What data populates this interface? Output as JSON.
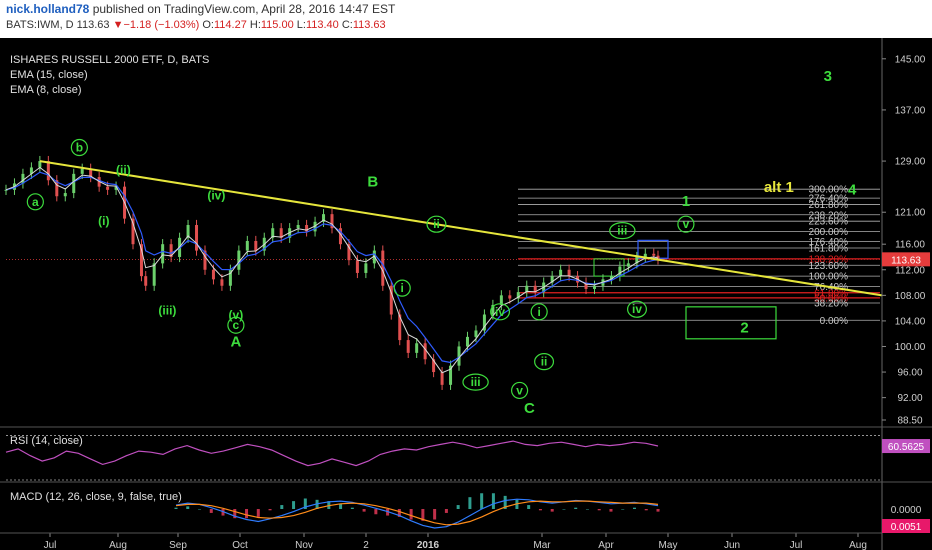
{
  "header": {
    "user": "nick.holland78",
    "published": "published on TradingView.com, April 28, 2016 14:47 EST",
    "symbol_line": "BATS:IWM, D 113.63",
    "change": "▼−1.18 (−1.03%)",
    "open_label": "O:",
    "open": "114.27",
    "high_label": "H:",
    "high": "115.00",
    "low_label": "L:",
    "low": "113.40",
    "close_label": "C:",
    "close": "113.63"
  },
  "legend": {
    "title": "ISHARES RUSSELL 2000 ETF, D, BATS",
    "ema15": "EMA (15, close)",
    "ema8": "EMA (8, close)",
    "rsi": "RSI (14, close)",
    "macd": "MACD (12, 26, close, 9, false, true)"
  },
  "colors": {
    "background": "#000000",
    "candle": "#6bd06b",
    "ema15": "#2f5cff",
    "ema8": "#d9d9d9",
    "trendline": "#e6e63c",
    "wave_label": "#3ddc3d",
    "alt_label": "#e6e63c",
    "fib_lines": "#b0b0b0",
    "fib_red": "#e02020",
    "rsi_line": "#c050c0",
    "macd_line": "#2f7cff",
    "signal_line": "#ff8c1a",
    "price_tag": "#e63c3c",
    "rsi_tag": "#c050c0",
    "macd_tag": "#e8186a"
  },
  "chart_data": [
    {
      "type": "candlestick",
      "title": "ISHARES RUSSELL 2000 ETF, D, BATS",
      "x_ticks": [
        "Jul",
        "Aug",
        "Sep",
        "Oct",
        "Nov",
        "2",
        "2016",
        "Mar",
        "Apr",
        "May",
        "Jun",
        "Jul",
        "Aug"
      ],
      "y_ticks": [
        "145.00",
        "137.00",
        "129.00",
        "121.00",
        "116.00",
        "112.00",
        "108.00",
        "104.00",
        "100.00",
        "96.00",
        "92.00",
        "88.50"
      ],
      "ylim": [
        88.5,
        147
      ],
      "last_price": "113.63",
      "price_series": {
        "x": [
          0,
          4,
          8,
          12,
          16,
          20,
          24,
          28,
          32,
          36,
          40,
          44,
          48,
          52,
          56,
          60,
          64,
          66,
          70,
          74,
          78,
          82,
          86,
          90,
          94,
          98,
          102,
          106,
          110,
          114,
          118,
          122,
          126,
          130,
          134,
          138,
          142,
          146,
          150,
          154,
          158,
          162,
          166,
          170,
          174,
          178,
          182,
          186,
          190,
          194,
          198,
          202,
          206,
          210,
          214,
          218,
          222,
          226,
          230,
          234,
          238,
          242,
          246,
          250,
          254,
          258,
          262,
          266,
          270,
          274,
          278,
          282,
          286,
          290,
          294,
          298,
          302,
          306,
          308
        ],
        "close": [
          124.5,
          125.5,
          127.0,
          128.0,
          129.0,
          126.0,
          123.5,
          124.0,
          127.0,
          127.8,
          126.5,
          125.0,
          124.5,
          125.0,
          120.0,
          116.0,
          111.0,
          109.5,
          113.0,
          116.0,
          114.0,
          117.0,
          119.0,
          115.0,
          112.0,
          110.5,
          109.5,
          112.0,
          115.0,
          116.5,
          115.0,
          117.0,
          118.5,
          117.0,
          118.5,
          119.0,
          118.0,
          119.5,
          120.7,
          118.5,
          116.0,
          113.5,
          111.5,
          113.0,
          115.0,
          109.5,
          105.0,
          101.0,
          99.0,
          100.5,
          98.0,
          96.0,
          94.0,
          97.0,
          100.0,
          101.5,
          102.5,
          105.0,
          106.5,
          108.0,
          107.5,
          108.5,
          109.5,
          108.5,
          110.0,
          111.0,
          112.0,
          111.0,
          110.0,
          109.0,
          109.5,
          110.5,
          111.0,
          112.5,
          113.0,
          114.0,
          114.5,
          114.2,
          113.63
        ]
      },
      "ema_15": "smoothed close (blue)",
      "ema_8": "smoothed close (light)",
      "trendline": {
        "from": {
          "x": 10,
          "y": 129.0
        },
        "to": {
          "x": 390,
          "y": 108.0
        }
      },
      "fibonacci": {
        "levels": [
          {
            "label": "300.00%",
            "y": 124.6
          },
          {
            "label": "276.40%",
            "y": 123.2
          },
          {
            "label": "261.80%",
            "y": 122.2
          },
          {
            "label": "238.20%",
            "y": 120.6
          },
          {
            "label": "223.60%",
            "y": 119.6
          },
          {
            "label": "200.00%",
            "y": 118.0
          },
          {
            "label": "176.40%",
            "y": 116.4
          },
          {
            "label": "161.80%",
            "y": 115.4
          },
          {
            "label": "138.20%",
            "y": 113.7
          },
          {
            "label": "123.60%",
            "y": 112.7
          },
          {
            "label": "100.00%",
            "y": 111.0
          },
          {
            "label": "76.40%",
            "y": 109.4
          },
          {
            "label": "61.80%",
            "y": 108.4
          },
          {
            "label": "50.00%",
            "y": 107.6
          },
          {
            "label": "38.20%",
            "y": 106.8
          },
          {
            "label": "0.00%",
            "y": 104.1
          }
        ],
        "red_levels": [
          "138.20%",
          "61.80%",
          "50.00%"
        ]
      },
      "wave_labels": [
        {
          "text": "a",
          "circled": true,
          "x": 6,
          "y": 122.0
        },
        {
          "text": "b",
          "circled": true,
          "x": 15,
          "y": 130.5
        },
        {
          "text": "(i)",
          "circled": false,
          "x": 20,
          "y": 119.0
        },
        {
          "text": "(ii)",
          "circled": false,
          "x": 24,
          "y": 127.0
        },
        {
          "text": "(iii)",
          "circled": false,
          "x": 33,
          "y": 105.0
        },
        {
          "text": "(iv)",
          "circled": false,
          "x": 43,
          "y": 123.0
        },
        {
          "text": "(v)",
          "circled": false,
          "x": 47,
          "y": 104.3
        },
        {
          "text": "c",
          "circled": true,
          "x": 47,
          "y": 102.7
        },
        {
          "text": "A",
          "circled": false,
          "x": 47,
          "y": 100.0
        },
        {
          "text": "B",
          "circled": false,
          "x": 75,
          "y": 125.0
        },
        {
          "text": "ii",
          "circled": true,
          "x": 88,
          "y": 118.5
        },
        {
          "text": "i",
          "circled": true,
          "x": 81,
          "y": 108.5
        },
        {
          "text": "iii",
          "circled": true,
          "x": 96,
          "y": 93.8
        },
        {
          "text": "iv",
          "circled": true,
          "x": 101,
          "y": 104.8
        },
        {
          "text": "v",
          "circled": true,
          "x": 105,
          "y": 92.5
        },
        {
          "text": "C",
          "circled": false,
          "x": 107,
          "y": 89.6
        },
        {
          "text": "i",
          "circled": true,
          "x": 109,
          "y": 104.8
        },
        {
          "text": "ii",
          "circled": true,
          "x": 110,
          "y": 97.0
        },
        {
          "text": "iii",
          "circled": true,
          "x": 126,
          "y": 117.5
        },
        {
          "text": "iv",
          "circled": true,
          "x": 129,
          "y": 105.2
        },
        {
          "text": "v",
          "circled": true,
          "x": 139,
          "y": 118.5
        },
        {
          "text": "1",
          "circled": false,
          "x": 139,
          "y": 122.0
        },
        {
          "text": "2",
          "circled": false,
          "x": 151,
          "y": 102.2
        },
        {
          "text": "3",
          "circled": false,
          "x": 168,
          "y": 141.5
        },
        {
          "text": "4",
          "circled": false,
          "x": 173,
          "y": 123.8
        }
      ],
      "alt_label": {
        "text": "alt 1",
        "x": 158,
        "y": 124.2
      }
    },
    {
      "type": "line",
      "title": "RSI (14, close)",
      "last_value": "60.5625",
      "values": [
        55,
        58,
        52,
        47,
        50,
        56,
        54,
        49,
        44,
        47,
        52,
        56,
        55,
        53,
        58,
        61,
        57,
        54,
        56,
        59,
        62,
        60,
        57,
        52,
        47,
        43,
        45,
        49,
        46,
        43,
        47,
        53,
        56,
        58,
        57,
        60,
        62,
        64,
        62,
        59,
        61,
        63,
        65,
        62,
        61,
        63,
        64,
        62,
        60,
        62,
        61,
        62,
        64,
        63,
        60.56
      ]
    },
    {
      "type": "line",
      "title": "MACD (12, 26, close, 9, false, true)",
      "y_ticks": [
        "0.0000"
      ],
      "last_value": "0.0051",
      "macd": [
        0.6,
        0.9,
        0.7,
        0.2,
        -0.4,
        -1.1,
        -1.6,
        -1.9,
        -1.5,
        -1.0,
        -0.4,
        0.3,
        0.8,
        1.1,
        1.2,
        1.0,
        0.6,
        0.1,
        -0.4,
        -1.0,
        -1.8,
        -2.5,
        -2.9,
        -2.7,
        -2.0,
        -1.0,
        0.0,
        0.8,
        1.3,
        1.5,
        1.4,
        1.1,
        0.9,
        1.1,
        1.3,
        1.2,
        1.0,
        0.8,
        0.9,
        1.0,
        0.8,
        0.5
      ],
      "signal": [
        0.5,
        0.7,
        0.7,
        0.5,
        0.1,
        -0.4,
        -0.9,
        -1.3,
        -1.4,
        -1.3,
        -1.0,
        -0.5,
        0.1,
        0.5,
        0.8,
        0.9,
        0.8,
        0.5,
        0.1,
        -0.4,
        -1.0,
        -1.6,
        -2.1,
        -2.4,
        -2.3,
        -1.9,
        -1.2,
        -0.4,
        0.3,
        0.8,
        1.1,
        1.2,
        1.1,
        1.1,
        1.2,
        1.2,
        1.1,
        1.0,
        0.9,
        0.9,
        0.9,
        0.7
      ]
    }
  ]
}
